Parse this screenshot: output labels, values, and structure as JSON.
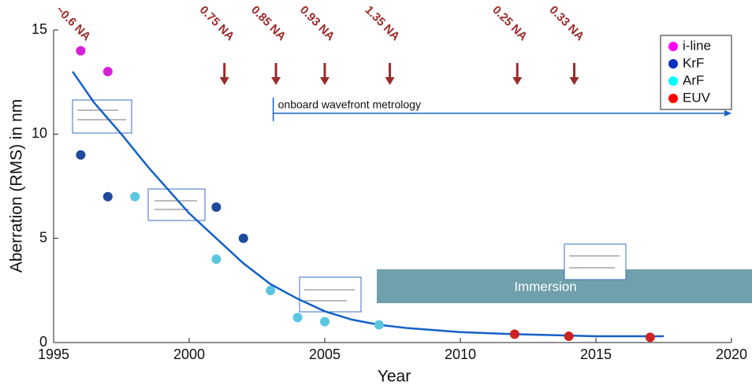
{
  "chart_data": {
    "type": "scatter",
    "x_label": "Year",
    "y_label": "Aberration (RMS) in nm",
    "xlim": [
      1995,
      2020
    ],
    "xticks": [
      1995,
      2000,
      2005,
      2010,
      2015,
      2020
    ],
    "ylim": [
      0,
      15
    ],
    "yticks": [
      0,
      5,
      10,
      15
    ],
    "legend": "upper right",
    "series": [
      {
        "name": "i-line",
        "color": "#ff00ff",
        "point_color": "#d81fd8",
        "x": [
          1996,
          1997
        ],
        "values": [
          14,
          13
        ]
      },
      {
        "name": "KrF",
        "color": "#0a2fc0",
        "point_color": "#1f4a9e",
        "x": [
          1996,
          1997,
          2001,
          2002
        ],
        "values": [
          9,
          7,
          6.5,
          5
        ]
      },
      {
        "name": "ArF",
        "color": "#00ffff",
        "point_color": "#5bc6df",
        "x": [
          1998,
          2001,
          2003,
          2004,
          2005,
          2007
        ],
        "values": [
          7,
          4,
          2.5,
          1.2,
          1,
          0.85
        ]
      },
      {
        "name": "EUV",
        "color": "#ff0000",
        "point_color": "#cc2222",
        "x": [
          2012,
          2014,
          2017
        ],
        "values": [
          0.4,
          0.3,
          0.25
        ]
      }
    ],
    "fit": {
      "color": "#1560c8",
      "x": [
        1995.7,
        1996.5,
        1997.5,
        1998.5,
        2000,
        2001,
        2002,
        2003,
        2004,
        2005,
        2006,
        2007,
        2008,
        2010,
        2012,
        2015,
        2017.5
      ],
      "values": [
        13,
        11.5,
        10,
        8.4,
        6.2,
        5,
        3.8,
        2.8,
        2.1,
        1.5,
        1.1,
        0.85,
        0.7,
        0.5,
        0.4,
        0.3,
        0.3
      ]
    },
    "na_labels": [
      {
        "text": "~0.6 NA",
        "x": 1996
      },
      {
        "text": "0.75 NA",
        "x": 2001.3
      },
      {
        "text": "0.85 NA",
        "x": 2003.2
      },
      {
        "text": "0.93 NA",
        "x": 2005
      },
      {
        "text": "1.35 NA",
        "x": 2007.4
      },
      {
        "text": "0.25 NA",
        "x": 2012.1
      },
      {
        "text": "0.33 NA",
        "x": 2014.2
      }
    ],
    "metrology": {
      "text": "onboard wavefront metrology",
      "x": [
        2003.1,
        2020
      ],
      "y": 11
    },
    "immersion": "Immersion"
  }
}
